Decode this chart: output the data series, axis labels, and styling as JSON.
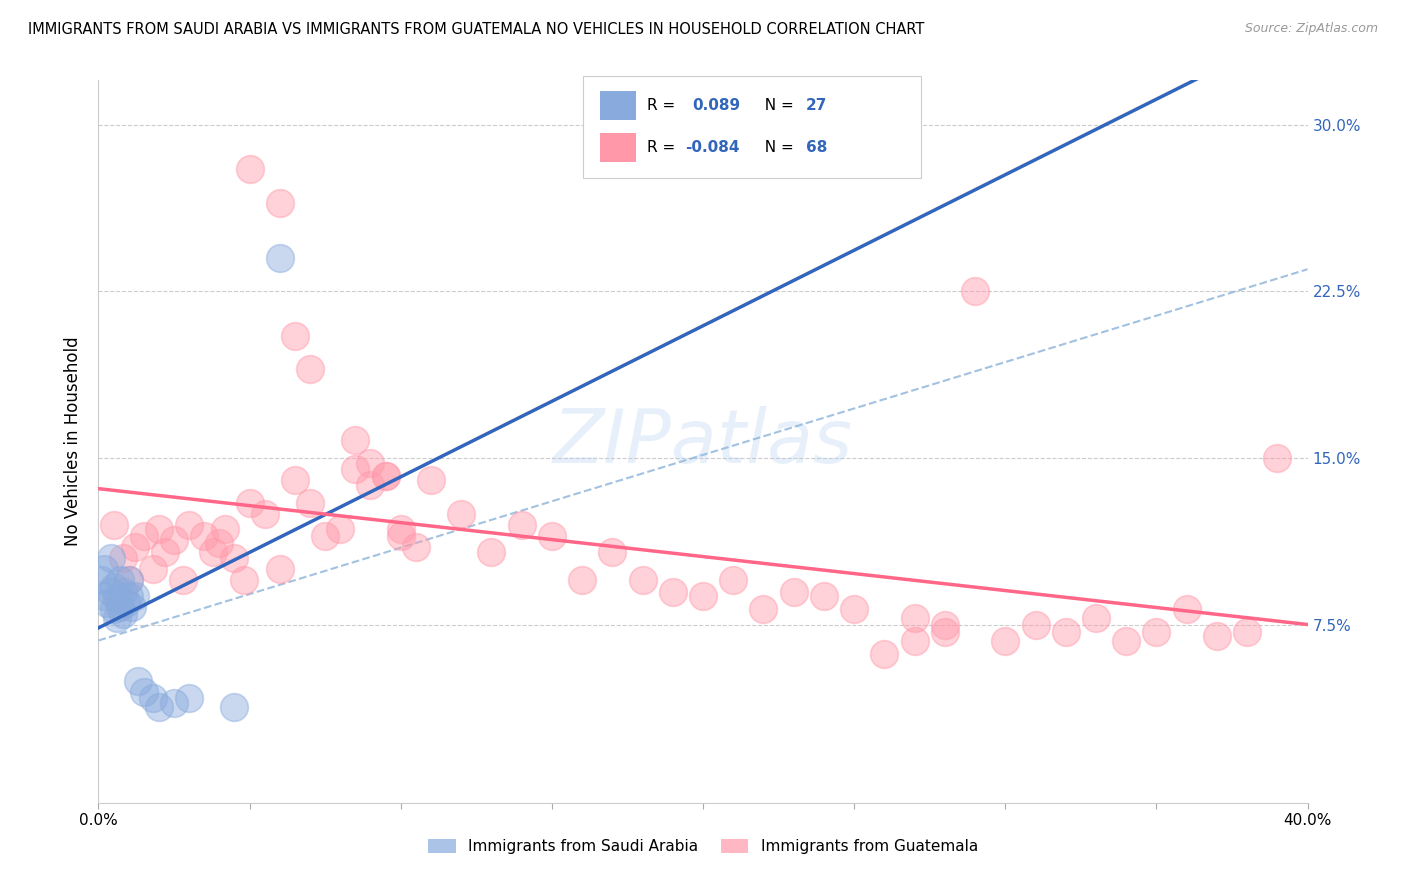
{
  "title": "IMMIGRANTS FROM SAUDI ARABIA VS IMMIGRANTS FROM GUATEMALA NO VEHICLES IN HOUSEHOLD CORRELATION CHART",
  "source": "Source: ZipAtlas.com",
  "ylabel": "No Vehicles in Household",
  "yticks": [
    0.075,
    0.15,
    0.225,
    0.3
  ],
  "ytick_labels": [
    "7.5%",
    "15.0%",
    "22.5%",
    "30.0%"
  ],
  "xlim": [
    0.0,
    0.4
  ],
  "ylim": [
    -0.005,
    0.32
  ],
  "color_saudi": "#88AADD",
  "color_guatemala": "#FF99AA",
  "color_saudi_line": "#3366BB",
  "color_guatemala_line": "#FF6688",
  "color_dashed": "#99BBDD",
  "watermark": "ZIPatlas",
  "saudi_x": [
    0.001,
    0.002,
    0.002,
    0.003,
    0.004,
    0.004,
    0.005,
    0.005,
    0.006,
    0.006,
    0.007,
    0.007,
    0.008,
    0.008,
    0.009,
    0.01,
    0.01,
    0.011,
    0.012,
    0.013,
    0.015,
    0.018,
    0.02,
    0.025,
    0.03,
    0.045,
    0.06
  ],
  "saudi_y": [
    0.095,
    0.088,
    0.1,
    0.085,
    0.09,
    0.105,
    0.082,
    0.092,
    0.078,
    0.087,
    0.083,
    0.095,
    0.08,
    0.09,
    0.085,
    0.088,
    0.095,
    0.083,
    0.088,
    0.05,
    0.045,
    0.042,
    0.038,
    0.04,
    0.042,
    0.038,
    0.24
  ],
  "guatemala_x": [
    0.005,
    0.008,
    0.01,
    0.012,
    0.015,
    0.018,
    0.02,
    0.022,
    0.025,
    0.028,
    0.03,
    0.035,
    0.038,
    0.04,
    0.042,
    0.045,
    0.048,
    0.05,
    0.055,
    0.06,
    0.065,
    0.07,
    0.075,
    0.08,
    0.085,
    0.09,
    0.095,
    0.1,
    0.105,
    0.11,
    0.12,
    0.13,
    0.14,
    0.15,
    0.16,
    0.17,
    0.18,
    0.19,
    0.2,
    0.21,
    0.22,
    0.23,
    0.24,
    0.25,
    0.26,
    0.27,
    0.28,
    0.29,
    0.3,
    0.31,
    0.32,
    0.33,
    0.34,
    0.35,
    0.36,
    0.37,
    0.38,
    0.39,
    0.27,
    0.28,
    0.05,
    0.06,
    0.065,
    0.07,
    0.085,
    0.09,
    0.095,
    0.1
  ],
  "guatemala_y": [
    0.12,
    0.105,
    0.095,
    0.11,
    0.115,
    0.1,
    0.118,
    0.108,
    0.113,
    0.095,
    0.12,
    0.115,
    0.108,
    0.112,
    0.118,
    0.105,
    0.095,
    0.13,
    0.125,
    0.1,
    0.14,
    0.13,
    0.115,
    0.118,
    0.145,
    0.138,
    0.142,
    0.115,
    0.11,
    0.14,
    0.125,
    0.108,
    0.12,
    0.115,
    0.095,
    0.108,
    0.095,
    0.09,
    0.088,
    0.095,
    0.082,
    0.09,
    0.088,
    0.082,
    0.062,
    0.078,
    0.072,
    0.225,
    0.068,
    0.075,
    0.072,
    0.078,
    0.068,
    0.072,
    0.082,
    0.07,
    0.072,
    0.15,
    0.068,
    0.075,
    0.28,
    0.265,
    0.205,
    0.19,
    0.158,
    0.148,
    0.142,
    0.118
  ]
}
